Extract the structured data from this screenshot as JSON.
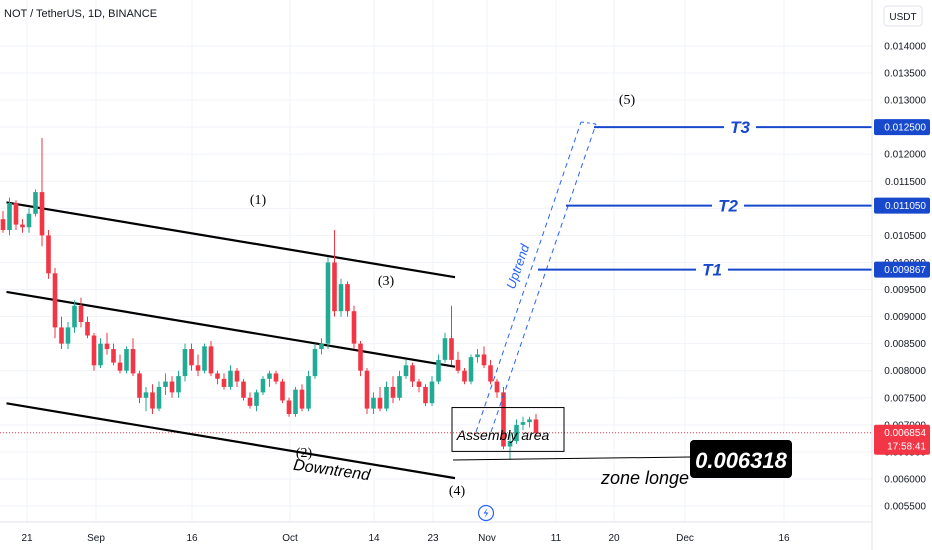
{
  "chart_title": "NOT / TetherUS, 1D, BINANCE",
  "currency": "USDT",
  "colors": {
    "up": "#22ab94",
    "down": "#f23645",
    "target": "#1848cc",
    "uptrend": "#2962ff",
    "current_price_bg": "#f23645"
  },
  "chart_data": {
    "type": "candlestick",
    "symbol": "NOT / TetherUS",
    "interval": "1D",
    "exchange": "BINANCE",
    "x_ticks": [
      "21",
      "Sep",
      "16",
      "Oct",
      "14",
      "23",
      "Nov",
      "11",
      "20",
      "Dec",
      "16"
    ],
    "y_ticks": [
      "0.014000",
      "0.013500",
      "0.013000",
      "0.012500",
      "0.012000",
      "0.011500",
      "0.011000",
      "0.010500",
      "0.010000",
      "0.009500",
      "0.009000",
      "0.008500",
      "0.008000",
      "0.007500",
      "0.007000",
      "0.006500",
      "0.006000",
      "0.005500"
    ],
    "ylim": [
      0.0053,
      0.0145
    ],
    "candles": [
      [
        0.0108,
        0.01095,
        0.01055,
        0.0106
      ],
      [
        0.0106,
        0.0112,
        0.0105,
        0.0111
      ],
      [
        0.0111,
        0.01115,
        0.0106,
        0.0107
      ],
      [
        0.0107,
        0.0108,
        0.01055,
        0.01065
      ],
      [
        0.01065,
        0.011,
        0.01055,
        0.0109
      ],
      [
        0.0109,
        0.01135,
        0.01085,
        0.0113
      ],
      [
        0.0113,
        0.0123,
        0.0103,
        0.0105
      ],
      [
        0.0105,
        0.0106,
        0.0097,
        0.0098
      ],
      [
        0.0098,
        0.0099,
        0.0086,
        0.0088
      ],
      [
        0.0088,
        0.009,
        0.0084,
        0.0085
      ],
      [
        0.0085,
        0.0089,
        0.0084,
        0.0088
      ],
      [
        0.0088,
        0.0093,
        0.0087,
        0.0092
      ],
      [
        0.0092,
        0.00935,
        0.0088,
        0.0089
      ],
      [
        0.0089,
        0.009,
        0.0086,
        0.00865
      ],
      [
        0.00865,
        0.0087,
        0.008,
        0.0081
      ],
      [
        0.0081,
        0.0086,
        0.00805,
        0.0085
      ],
      [
        0.0085,
        0.0087,
        0.0083,
        0.0084
      ],
      [
        0.0084,
        0.0085,
        0.0081,
        0.00815
      ],
      [
        0.00815,
        0.0083,
        0.00795,
        0.008
      ],
      [
        0.008,
        0.00845,
        0.00795,
        0.0084
      ],
      [
        0.0084,
        0.0086,
        0.0079,
        0.00795
      ],
      [
        0.00795,
        0.008,
        0.0074,
        0.0075
      ],
      [
        0.0075,
        0.0077,
        0.00725,
        0.0076
      ],
      [
        0.0076,
        0.00775,
        0.0072,
        0.0073
      ],
      [
        0.0073,
        0.0078,
        0.00725,
        0.0077
      ],
      [
        0.0077,
        0.00795,
        0.00755,
        0.0078
      ],
      [
        0.0078,
        0.0079,
        0.0075,
        0.0076
      ],
      [
        0.0076,
        0.008,
        0.0075,
        0.0079
      ],
      [
        0.0079,
        0.0085,
        0.0078,
        0.0084
      ],
      [
        0.0084,
        0.0085,
        0.008,
        0.0081
      ],
      [
        0.0081,
        0.0083,
        0.0079,
        0.008
      ],
      [
        0.008,
        0.0085,
        0.00795,
        0.00845
      ],
      [
        0.00845,
        0.00855,
        0.0079,
        0.00795
      ],
      [
        0.00795,
        0.008,
        0.00775,
        0.00785
      ],
      [
        0.00785,
        0.00795,
        0.00765,
        0.0077
      ],
      [
        0.0077,
        0.0081,
        0.00765,
        0.008
      ],
      [
        0.008,
        0.00805,
        0.0077,
        0.0078
      ],
      [
        0.0078,
        0.00785,
        0.00745,
        0.0075
      ],
      [
        0.0075,
        0.0076,
        0.0073,
        0.00735
      ],
      [
        0.00735,
        0.00765,
        0.00725,
        0.0076
      ],
      [
        0.0076,
        0.0079,
        0.00755,
        0.00785
      ],
      [
        0.00785,
        0.008,
        0.0077,
        0.00795
      ],
      [
        0.00795,
        0.008,
        0.00775,
        0.0078
      ],
      [
        0.0078,
        0.00785,
        0.0074,
        0.00745
      ],
      [
        0.00745,
        0.0075,
        0.00715,
        0.0072
      ],
      [
        0.0072,
        0.0077,
        0.00715,
        0.00765
      ],
      [
        0.00765,
        0.00775,
        0.00725,
        0.0073
      ],
      [
        0.0073,
        0.008,
        0.00725,
        0.0079
      ],
      [
        0.0079,
        0.0085,
        0.00785,
        0.0084
      ],
      [
        0.0084,
        0.0086,
        0.0083,
        0.0085
      ],
      [
        0.0085,
        0.0101,
        0.0084,
        0.01
      ],
      [
        0.01,
        0.0106,
        0.009,
        0.0091
      ],
      [
        0.0091,
        0.0097,
        0.009,
        0.0096
      ],
      [
        0.0096,
        0.00965,
        0.009,
        0.0091
      ],
      [
        0.0091,
        0.0092,
        0.0084,
        0.0085
      ],
      [
        0.0085,
        0.00855,
        0.0079,
        0.008
      ],
      [
        0.008,
        0.00805,
        0.0072,
        0.0073
      ],
      [
        0.0073,
        0.0076,
        0.0072,
        0.0075
      ],
      [
        0.0075,
        0.0077,
        0.00725,
        0.0073
      ],
      [
        0.0073,
        0.0078,
        0.00725,
        0.0077
      ],
      [
        0.0077,
        0.0079,
        0.0074,
        0.0075
      ],
      [
        0.0075,
        0.008,
        0.00745,
        0.0079
      ],
      [
        0.0079,
        0.0082,
        0.00785,
        0.0081
      ],
      [
        0.0081,
        0.00815,
        0.0077,
        0.0078
      ],
      [
        0.0078,
        0.00785,
        0.0076,
        0.0077
      ],
      [
        0.0077,
        0.00775,
        0.00735,
        0.0074
      ],
      [
        0.0074,
        0.0079,
        0.00735,
        0.0078
      ],
      [
        0.0078,
        0.0083,
        0.00775,
        0.0082
      ],
      [
        0.0082,
        0.0087,
        0.00815,
        0.0086
      ],
      [
        0.0086,
        0.0092,
        0.0081,
        0.0082
      ],
      [
        0.0082,
        0.00835,
        0.00795,
        0.008
      ],
      [
        0.008,
        0.00805,
        0.00775,
        0.0078
      ],
      [
        0.0078,
        0.0083,
        0.00775,
        0.00825
      ],
      [
        0.00825,
        0.0084,
        0.00815,
        0.0083
      ],
      [
        0.0083,
        0.00845,
        0.00805,
        0.0081
      ],
      [
        0.0081,
        0.0082,
        0.00775,
        0.0078
      ],
      [
        0.0078,
        0.00785,
        0.0075,
        0.0076
      ],
      [
        0.0076,
        0.0077,
        0.00655,
        0.0066
      ],
      [
        0.0066,
        0.0069,
        0.00635,
        0.0067
      ],
      [
        0.0067,
        0.0071,
        0.00665,
        0.007
      ],
      [
        0.007,
        0.00715,
        0.0069,
        0.00705
      ],
      [
        0.00705,
        0.00715,
        0.00695,
        0.0071
      ],
      [
        0.0071,
        0.0072,
        0.0068,
        0.00685
      ]
    ],
    "trend_lines": [
      {
        "name": "upper",
        "from": [
          0,
          0.01111
        ],
        "to": [
          69,
          0.009728
        ]
      },
      {
        "name": "middle",
        "from": [
          0,
          0.009456
        ],
        "to": [
          69,
          0.008074
        ]
      },
      {
        "name": "lower",
        "from": [
          0,
          0.007397
        ],
        "to": [
          69,
          0.006015
        ]
      }
    ],
    "assembly_box": {
      "label": "Assembly area",
      "x_from": 50,
      "x_to": 68,
      "y_from": 0.006509,
      "y_to": 0.007319
    },
    "uptrend_channel": {
      "label": "Uptrend",
      "from": [
        51,
        0.00685
      ],
      "to": [
        71,
        0.0126
      ]
    },
    "wave_labels": [
      {
        "label": "(1)",
        "x": 37,
        "y": 0.01105
      },
      {
        "label": "(2)",
        "x": 43,
        "y": 0.00655
      },
      {
        "label": "(3)",
        "x": 55,
        "y": 0.00945
      },
      {
        "label": "(4)",
        "x": 67,
        "y": 0.00615
      },
      {
        "label": "(5)",
        "x": 93,
        "y": 0.01305
      }
    ],
    "targets": [
      {
        "label": "T1",
        "value": "0.009867",
        "price": 0.009867
      },
      {
        "label": "T2",
        "value": "0.011050",
        "price": 0.01105
      },
      {
        "label": "T3",
        "value": "0.012500",
        "price": 0.0125
      }
    ],
    "current_price": {
      "value": "0.006854",
      "countdown": "17:58:41",
      "price": 0.006854
    },
    "annotations": {
      "downtrend": "Downtrend",
      "zone_label": "zone longe",
      "zone_value": "0.006318"
    }
  }
}
